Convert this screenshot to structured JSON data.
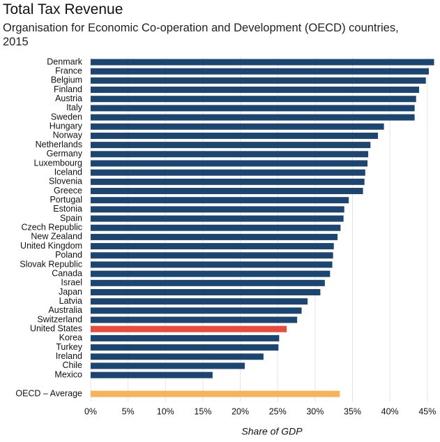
{
  "chart_data": {
    "type": "hbar",
    "title": "Total Tax Revenue",
    "subtitle": "Organisation for Economic Co-operation and Development (OECD) countries, 2015",
    "x_label": "Share of GDP",
    "categories": [
      "Denmark",
      "France",
      "Belgium",
      "Finland",
      "Austria",
      "Italy",
      "Sweden",
      "Hungary",
      "Norway",
      "Netherlands",
      "Germany",
      "Luxembourg",
      "Iceland",
      "Slovenia",
      "Greece",
      "Portugal",
      "Estonia",
      "Spain",
      "Czech Republic",
      "New Zealand",
      "United Kingdom",
      "Poland",
      "Slovak Republic",
      "Canada",
      "Israel",
      "Japan",
      "Latvia",
      "Australia",
      "Switzerland",
      "United States",
      "Korea",
      "Turkey",
      "Ireland",
      "Chile",
      "Mexico",
      "OECD – Average"
    ],
    "values": [
      45.9,
      45.2,
      44.8,
      43.9,
      43.5,
      43.3,
      43.3,
      39.2,
      38.4,
      37.4,
      37.1,
      37.0,
      36.7,
      36.6,
      36.4,
      34.5,
      33.9,
      33.8,
      33.4,
      33.0,
      32.5,
      32.4,
      32.3,
      32.0,
      31.3,
      30.7,
      29.0,
      28.2,
      27.6,
      26.2,
      25.2,
      25.1,
      23.1,
      20.6,
      16.3,
      33.3
    ],
    "colors": [
      "#1d4572",
      "#1d4572",
      "#1d4572",
      "#1d4572",
      "#1d4572",
      "#1d4572",
      "#1d4572",
      "#1d4572",
      "#1d4572",
      "#1d4572",
      "#1d4572",
      "#1d4572",
      "#1d4572",
      "#1d4572",
      "#1d4572",
      "#1d4572",
      "#1d4572",
      "#1d4572",
      "#1d4572",
      "#1d4572",
      "#1d4572",
      "#1d4572",
      "#1d4572",
      "#1d4572",
      "#1d4572",
      "#1d4572",
      "#1d4572",
      "#1d4572",
      "#1d4572",
      "#e84c3c",
      "#1d4572",
      "#1d4572",
      "#1d4572",
      "#1d4572",
      "#1d4572",
      "#f8b35a"
    ],
    "xlim": [
      0,
      46.6
    ],
    "xticks": [
      {
        "value": 0,
        "label": "0%"
      },
      {
        "value": 5,
        "label": "5%"
      },
      {
        "value": 10,
        "label": "10%"
      },
      {
        "value": 15,
        "label": "15%"
      },
      {
        "value": 20,
        "label": "20%"
      },
      {
        "value": 25,
        "label": "25%"
      },
      {
        "value": 30,
        "label": "30%"
      },
      {
        "value": 35,
        "label": "35%"
      },
      {
        "value": 40,
        "label": "40%"
      },
      {
        "value": 45,
        "label": "45%"
      }
    ],
    "grid": true
  }
}
